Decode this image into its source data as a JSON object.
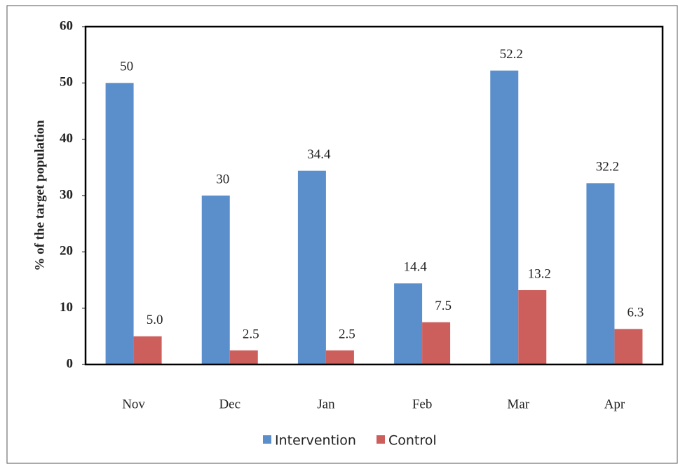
{
  "chart_data": {
    "type": "bar",
    "y_label": "% of the target population",
    "categories": [
      "Nov",
      "Dec",
      "Jan",
      "Feb",
      "Mar",
      "Apr"
    ],
    "series": [
      {
        "name": "Intervention",
        "color": "#5b8fcb",
        "values": [
          50,
          30,
          34.4,
          14.4,
          52.2,
          32.2
        ]
      },
      {
        "name": "Control",
        "color": "#cc5e5b",
        "values": [
          5.0,
          2.5,
          2.5,
          7.5,
          13.2,
          6.3
        ],
        "value_labels": [
          "5.0",
          "2.5",
          "2.5",
          "7.5",
          "13.2",
          "6.3"
        ]
      }
    ],
    "ylim": [
      0,
      60
    ],
    "yticks": [
      0,
      10,
      20,
      30,
      40,
      50,
      60
    ],
    "grid": false,
    "legend": "bottom"
  }
}
